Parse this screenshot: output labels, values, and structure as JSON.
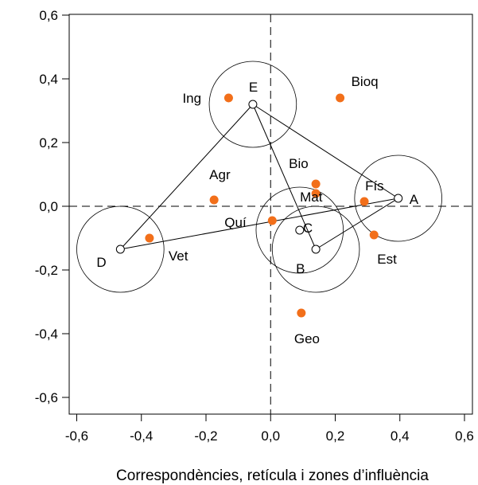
{
  "chart_data": {
    "type": "scatter",
    "xlabel": "Correspondències, retícula i zones d’influència",
    "ylabel": "",
    "xlim": [
      -0.6,
      0.6
    ],
    "ylim": [
      -0.6,
      0.6
    ],
    "xticks": [
      -0.6,
      -0.4,
      -0.2,
      0.0,
      0.2,
      0.4,
      0.6
    ],
    "yticks": [
      -0.6,
      -0.4,
      -0.2,
      0.0,
      0.2,
      0.4,
      0.6
    ],
    "xtick_labels": [
      "-0,6",
      "-0,4",
      "-0,2",
      "0,0",
      "0,2",
      "0,4",
      "0,6"
    ],
    "ytick_labels": [
      "-0,6",
      "-0,4",
      "-0,2",
      "0,0",
      "0,2",
      "0,4",
      "0,6"
    ],
    "reference_lines": "dashed at x=0 and y=0",
    "grid": false,
    "categories": [
      {
        "name": "Ing",
        "x": -0.13,
        "y": 0.34
      },
      {
        "name": "Bioq",
        "x": 0.215,
        "y": 0.34
      },
      {
        "name": "Agr",
        "x": -0.175,
        "y": 0.02
      },
      {
        "name": "Bio",
        "x": 0.14,
        "y": 0.07
      },
      {
        "name": "Mat",
        "x": 0.14,
        "y": 0.04
      },
      {
        "name": "Fís",
        "x": 0.29,
        "y": 0.015
      },
      {
        "name": "Quí",
        "x": 0.005,
        "y": -0.045
      },
      {
        "name": "Vet",
        "x": -0.375,
        "y": -0.1
      },
      {
        "name": "Est",
        "x": 0.32,
        "y": -0.09
      },
      {
        "name": "Geo",
        "x": 0.095,
        "y": -0.335
      }
    ],
    "nodes": [
      {
        "name": "A",
        "x": 0.395,
        "y": 0.025,
        "radius": 0.135
      },
      {
        "name": "B",
        "x": 0.14,
        "y": -0.135,
        "radius": 0.135
      },
      {
        "name": "C",
        "x": 0.09,
        "y": -0.075,
        "radius": 0.135
      },
      {
        "name": "D",
        "x": -0.465,
        "y": -0.135,
        "radius": 0.135
      },
      {
        "name": "E",
        "x": -0.055,
        "y": 0.32,
        "radius": 0.135
      }
    ],
    "edges": [
      [
        "E",
        "A"
      ],
      [
        "E",
        "B"
      ],
      [
        "E",
        "D"
      ],
      [
        "D",
        "A"
      ],
      [
        "B",
        "A"
      ]
    ],
    "colors": {
      "category_point": "#f26f1a",
      "node": "#000000"
    }
  }
}
